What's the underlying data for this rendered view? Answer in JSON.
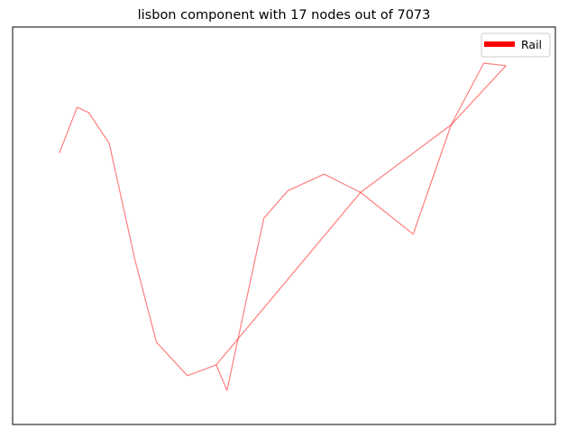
{
  "figure": {
    "title": "lisbon component with 17 nodes out of 7073"
  },
  "legend": {
    "entries": [
      {
        "label": "Rail",
        "color": "#ff0000"
      }
    ]
  },
  "chart_data": {
    "type": "line",
    "title": "lisbon component with 17 nodes out of 7073",
    "xlabel": "",
    "ylabel": "",
    "axes_ticks": "none",
    "grid": false,
    "legend_placement": "top-right",
    "xlim": [
      0,
      100
    ],
    "ylim": [
      0,
      100
    ],
    "series": [
      {
        "name": "Rail",
        "color": "#ff0000",
        "alpha": 0.5,
        "edges": [
          {
            "name": "rail-edge-1",
            "points": [
              [
                8.6,
                68.3
              ],
              [
                11.9,
                79.8
              ],
              [
                14.0,
                78.5
              ],
              [
                17.8,
                70.7
              ],
              [
                22.5,
                41.6
              ],
              [
                26.5,
                20.7
              ],
              [
                32.2,
                12.3
              ],
              [
                37.5,
                15.0
              ],
              [
                39.5,
                8.6
              ],
              [
                46.3,
                51.9
              ],
              [
                50.7,
                58.8
              ],
              [
                57.4,
                63.0
              ],
              [
                64.1,
                58.4
              ],
              [
                73.8,
                47.9
              ],
              [
                80.8,
                75.4
              ]
            ]
          },
          {
            "name": "rail-edge-2",
            "points": [
              [
                37.5,
                15.0
              ],
              [
                64.1,
                58.4
              ],
              [
                80.8,
                75.4
              ],
              [
                90.9,
                90.3
              ]
            ]
          },
          {
            "name": "rail-edge-3",
            "points": [
              [
                80.8,
                75.4
              ],
              [
                86.8,
                90.9
              ],
              [
                90.9,
                90.3
              ]
            ]
          }
        ]
      }
    ]
  }
}
